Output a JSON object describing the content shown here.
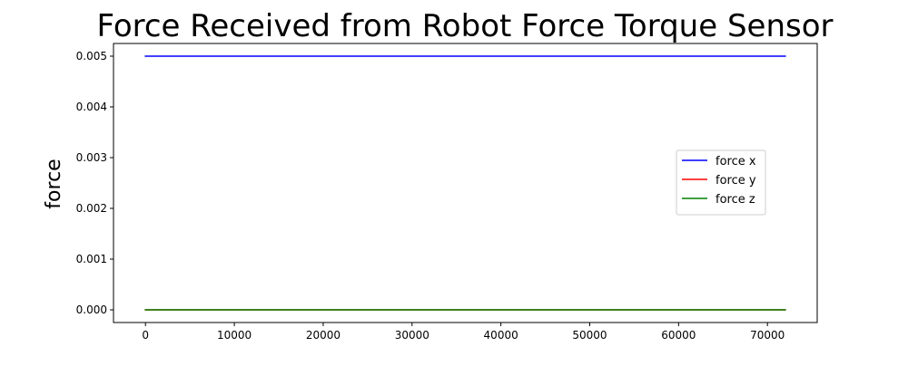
{
  "chart_data": {
    "type": "line",
    "title": "Force Received from Robot Force Torque Sensor",
    "xlabel": "",
    "ylabel": "force",
    "xlim": [
      -3600,
      75600
    ],
    "ylim": [
      -0.00025,
      0.00525
    ],
    "x_ticks": [
      0,
      10000,
      20000,
      30000,
      40000,
      50000,
      60000,
      70000
    ],
    "x_tick_labels": [
      "0",
      "10000",
      "20000",
      "30000",
      "40000",
      "50000",
      "60000",
      "70000"
    ],
    "y_ticks": [
      0,
      0.001,
      0.002,
      0.003,
      0.004,
      0.005
    ],
    "y_tick_labels": [
      "0.000",
      "0.001",
      "0.002",
      "0.003",
      "0.004",
      "0.005"
    ],
    "grid": false,
    "legend_position": "center-right",
    "series": [
      {
        "name": "force x",
        "color": "#0000ff",
        "x": [
          0,
          72000
        ],
        "y": [
          0.005,
          0.005
        ]
      },
      {
        "name": "force y",
        "color": "#ff0000",
        "x": [
          0,
          72000
        ],
        "y": [
          0.0,
          0.0
        ]
      },
      {
        "name": "force z",
        "color": "#008000",
        "x": [
          0,
          72000
        ],
        "y": [
          0.0,
          0.0
        ]
      }
    ]
  }
}
